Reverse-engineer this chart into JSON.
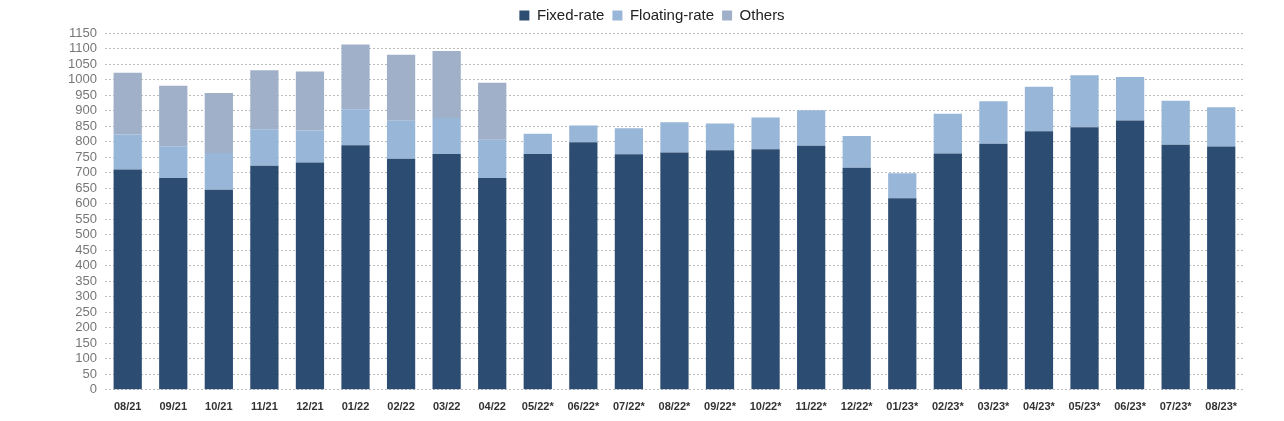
{
  "chart_data": {
    "type": "bar",
    "stacked": true,
    "categories": [
      "08/21",
      "09/21",
      "10/21",
      "11/21",
      "12/21",
      "01/22",
      "02/22",
      "03/22",
      "04/22",
      "05/22*",
      "06/22*",
      "07/22*",
      "08/22*",
      "09/22*",
      "10/22*",
      "11/22*",
      "12/22*",
      "01/23*",
      "02/23*",
      "03/23*",
      "04/23*",
      "05/23*",
      "06/23*",
      "07/23*",
      "08/23*"
    ],
    "series": [
      {
        "name": "Fixed-rate",
        "color": "#2c4c72",
        "values": [
          710,
          683,
          645,
          722,
          733,
          788,
          745,
          760,
          683,
          760,
          798,
          759,
          765,
          772,
          775,
          787,
          716,
          617,
          762,
          793,
          833,
          846,
          868,
          790,
          784
        ]
      },
      {
        "name": "Floating-rate",
        "color": "#98b6d8",
        "values": [
          113,
          102,
          118,
          118,
          103,
          116,
          122,
          116,
          123,
          65,
          54,
          84,
          97,
          86,
          103,
          114,
          102,
          81,
          128,
          137,
          144,
          168,
          140,
          142,
          127
        ]
      },
      {
        "name": "Others",
        "color": "#9fb0c8",
        "values": [
          199,
          195,
          194,
          190,
          190,
          209,
          213,
          216,
          184,
          null,
          null,
          null,
          null,
          null,
          null,
          null,
          null,
          null,
          null,
          null,
          null,
          null,
          null,
          null,
          null
        ]
      }
    ],
    "ylim": [
      0,
      1150
    ],
    "yticks": [
      0,
      50,
      100,
      150,
      200,
      250,
      300,
      350,
      400,
      450,
      500,
      550,
      600,
      650,
      700,
      750,
      800,
      850,
      900,
      950,
      1000,
      1050,
      1100,
      1150
    ],
    "grid": "y",
    "legend": "top"
  }
}
